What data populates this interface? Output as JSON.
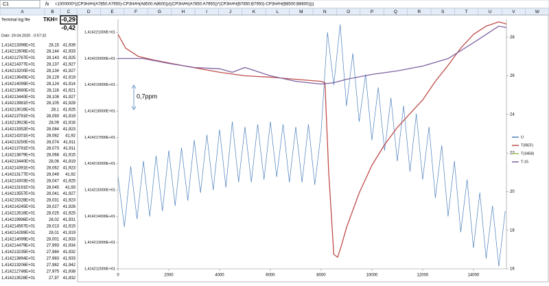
{
  "sheet": {
    "name_box": "C1",
    "formula": "=1000000*((СРЗНАЧ(A7850:A7950)-СРЗНАЧ(A8500:A8600))/((СРЗНАЧ(A7850:A7950))*(СРЗНАЧ(B7850:B7950)-СРЗНАЧ(B8500:B8600))))",
    "columns": [
      "A",
      "B",
      "C",
      "D",
      "E",
      "F",
      "G",
      "H",
      "I",
      "J",
      "K",
      "L",
      "M",
      "N",
      "O",
      "P",
      "Q",
      "R",
      "S",
      "T",
      "U",
      "V",
      "W"
    ],
    "title_cell": "Terminal log file",
    "tkh_label": "TKH=",
    "tkh_value": "-0,29",
    "tkh_value2": "-0,42",
    "date": "Date: 29.04.2020 - 0:57:32",
    "rows": [
      [
        "1,414213396E+01",
        "28,15",
        "41,939"
      ],
      [
        "1,414212606E+01",
        "28,144",
        "41,933"
      ],
      [
        "1,414212767E+01",
        "28,143",
        "41,925"
      ],
      [
        "1,414214377E+01",
        "28,137",
        "41,927"
      ],
      [
        "1,414213200E+01",
        "28,134",
        "41,927"
      ],
      [
        "1,414213645E+01",
        "28,129",
        "41,919"
      ],
      [
        "1,414214099E+01",
        "28,124",
        "41,914"
      ],
      [
        "1,414213660E+01",
        "28,116",
        "41,921"
      ],
      [
        "1,414213440E+01",
        "28,108",
        "41,927"
      ],
      [
        "1,414213981E+01",
        "28,105",
        "41,928"
      ],
      [
        "1,414213016E+01",
        "28,1",
        "41,925"
      ],
      [
        "1,414213791E+01",
        "28,093",
        "41,919"
      ],
      [
        "1,414213923E+01",
        "28,09",
        "41,916"
      ],
      [
        "1,414213352E+01",
        "28,084",
        "41,923"
      ],
      [
        "1,414214201E+01",
        "28,082",
        "41,92"
      ],
      [
        "1,414213250E+01",
        "28,074",
        "41,911"
      ],
      [
        "1,414213791E+01",
        "28,073",
        "41,911"
      ],
      [
        "1,414213879E+01",
        "28,068",
        "41,915"
      ],
      [
        "1,414213440E+01",
        "28,06",
        "41,919"
      ],
      [
        "1,414214391E+01",
        "28,062",
        "41,923"
      ],
      [
        "1,414213177E+01",
        "28,049",
        "41,92"
      ],
      [
        "1,414214303E+01",
        "28,047",
        "41,925"
      ],
      [
        "1,414213191E+01",
        "28,045",
        "41,93"
      ],
      [
        "1,414213557E+01",
        "28,041",
        "41,927"
      ],
      [
        "1,414215328E+01",
        "28,031",
        "41,923"
      ],
      [
        "1,414214245E+01",
        "28,027",
        "41,926"
      ],
      [
        "1,414212616E+01",
        "28,025",
        "41,925"
      ],
      [
        "1,414219996E+01",
        "28,02",
        "41,931"
      ],
      [
        "1,414214567E+01",
        "28,013",
        "41,915"
      ],
      [
        "1,414214289E+01",
        "28,01",
        "41,919"
      ],
      [
        "1,414214099E+01",
        "28,001",
        "41,933"
      ],
      [
        "1,414214479E+01",
        "27,993",
        "41,934"
      ],
      [
        "1,414213235E+01",
        "27,984",
        "41,932"
      ],
      [
        "1,414213894E+01",
        "27,983",
        "41,933"
      ],
      [
        "1,414213206E+01",
        "27,982",
        "41,942"
      ],
      [
        "1,414212746E+01",
        "27,975",
        "41,938"
      ],
      [
        "1,414213528E+01",
        "27,97",
        "41,932"
      ]
    ]
  },
  "chart_data": {
    "type": "line",
    "annotation": "0,7ppm",
    "legend": "right",
    "xlim": [
      0,
      15300
    ],
    "xticks": [
      0,
      2000,
      4000,
      6000,
      8000,
      10000,
      12000,
      14000
    ],
    "ylim": [
      14.14212,
      14.142215
    ],
    "yticks": [
      {
        "value": 14.14212,
        "label": "1,414212000E+01"
      },
      {
        "value": 14.14213,
        "label": "1,414213000E+01"
      },
      {
        "value": 14.14214,
        "label": "1,414214000E+01"
      },
      {
        "value": 14.14215,
        "label": "1,414215000E+01"
      },
      {
        "value": 14.14216,
        "label": "1,414216000E+01"
      },
      {
        "value": 14.14217,
        "label": "1,414217000E+01"
      },
      {
        "value": 14.14218,
        "label": "1,414218000E+01"
      },
      {
        "value": 14.14219,
        "label": "1,414219000E+01"
      },
      {
        "value": 14.1422,
        "label": "1,414220000E+01"
      },
      {
        "value": 14.14221,
        "label": "1,414221000E+01"
      }
    ],
    "y2lim": [
      16,
      28.93
    ],
    "y2ticks": [
      16,
      18,
      20,
      22,
      24,
      26,
      28
    ],
    "series": [
      {
        "name": "U",
        "color": "#4a7ebb",
        "axis": "y",
        "x": [
          0,
          250,
          500,
          750,
          1000,
          1250,
          1500,
          1750,
          2000,
          2250,
          2500,
          2750,
          3000,
          3250,
          3500,
          3750,
          4000,
          4250,
          4500,
          4750,
          5000,
          5250,
          5500,
          5750,
          6000,
          6250,
          6500,
          6750,
          7000,
          7250,
          7500,
          7750,
          8000,
          8250,
          8500,
          8750,
          9000,
          9250,
          9500,
          9750,
          10000,
          10250,
          10500,
          10750,
          11000,
          11250,
          11500,
          11750,
          12000,
          12250,
          12500,
          12750,
          13000,
          13250,
          13500,
          13750,
          14000,
          14250,
          14500,
          14750,
          15000,
          15250
        ],
        "values": [
          14.142155,
          14.142136,
          14.142159,
          14.142139,
          14.142161,
          14.14214,
          14.142163,
          14.142142,
          14.142165,
          14.142144,
          14.142166,
          14.142146,
          14.142169,
          14.142149,
          14.142171,
          14.14215,
          14.142173,
          14.142151,
          14.142176,
          14.142153,
          14.142174,
          14.142153,
          14.142175,
          14.142154,
          14.142176,
          14.142155,
          14.142175,
          14.142153,
          14.142174,
          14.142153,
          14.142175,
          14.142152,
          14.142172,
          14.14221,
          14.14219,
          14.142213,
          14.142182,
          14.142202,
          14.142176,
          14.142194,
          14.142169,
          14.142189,
          14.142165,
          14.142185,
          14.142161,
          14.142182,
          14.142157,
          14.142179,
          14.142154,
          14.142174,
          14.142147,
          14.142167,
          14.14214,
          14.142161,
          14.142134,
          14.142154,
          14.142128,
          14.142149,
          14.142124,
          14.142144,
          14.142121,
          14.142142
        ]
      },
      {
        "name": "T(REF)",
        "color": "#be4b48",
        "axis": "y2",
        "x": [
          0,
          300,
          800,
          1500,
          2500,
          4000,
          5000,
          6000,
          7000,
          8000,
          8150,
          8300,
          8500,
          8650,
          8800,
          9000,
          9500,
          10000,
          10500,
          11000,
          11500,
          12000,
          12500,
          13000,
          13500,
          14000,
          14500,
          15000,
          15300
        ],
        "values": [
          28.14,
          27.43,
          27.0,
          26.79,
          26.54,
          26.18,
          26.0,
          25.93,
          25.82,
          25.71,
          25.64,
          21.0,
          16.75,
          16.6,
          17.2,
          18.14,
          19.93,
          21.36,
          22.43,
          23.32,
          24.04,
          24.75,
          25.71,
          26.54,
          27.43,
          28.14,
          28.57,
          28.79,
          28.68
        ]
      },
      {
        "name": "T(3458)",
        "color": "#98b954",
        "axis": "y2",
        "x": [],
        "values": []
      },
      {
        "name": "T-15",
        "color": "#7d60a0",
        "axis": "y2",
        "x": [
          0,
          1000,
          2000,
          3000,
          4000,
          4500,
          5000,
          6000,
          7000,
          8000,
          8500,
          9000,
          10000,
          11000,
          12000,
          13000,
          14000,
          15000,
          15300
        ],
        "values": [
          26.89,
          26.89,
          26.64,
          26.43,
          26.36,
          26.18,
          26.43,
          26.0,
          25.71,
          25.57,
          25.64,
          25.82,
          26.07,
          26.25,
          26.5,
          26.89,
          27.71,
          28.57,
          28.5
        ]
      }
    ]
  }
}
